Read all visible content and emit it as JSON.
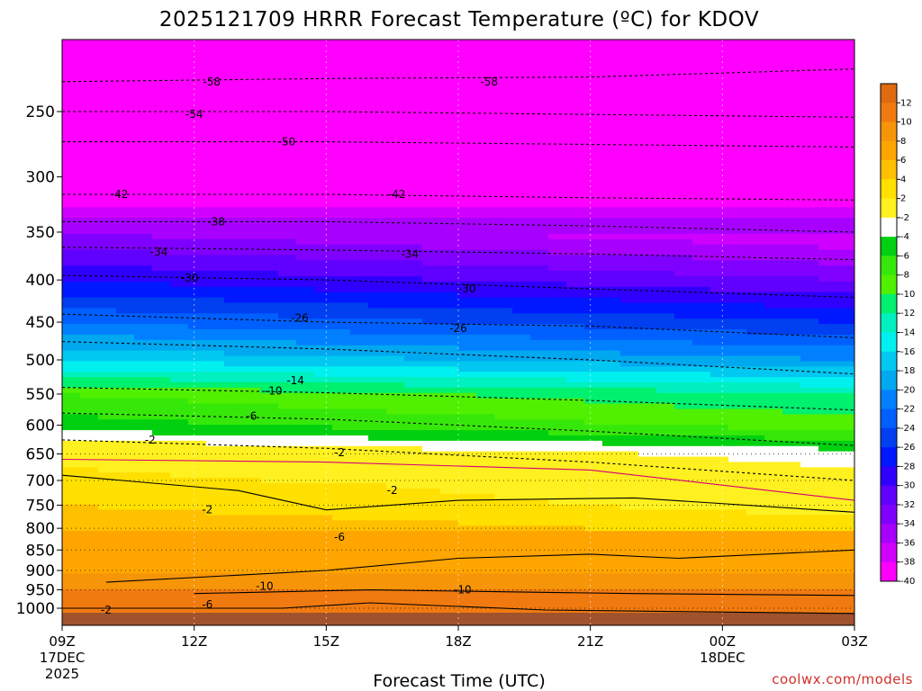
{
  "chart_data": {
    "type": "heatmap",
    "title": "2025121709 HRRR Forecast Temperature (ºC) for KDOV",
    "xlabel": "Forecast Time (UTC)",
    "ylabel": "",
    "x_ticks": [
      {
        "label": "09Z",
        "sub1": "17DEC",
        "sub2": "2025"
      },
      {
        "label": "12Z",
        "sub1": "",
        "sub2": ""
      },
      {
        "label": "15Z",
        "sub1": "",
        "sub2": ""
      },
      {
        "label": "18Z",
        "sub1": "",
        "sub2": ""
      },
      {
        "label": "21Z",
        "sub1": "",
        "sub2": ""
      },
      {
        "label": "00Z",
        "sub1": "18DEC",
        "sub2": ""
      },
      {
        "label": "03Z",
        "sub1": "",
        "sub2": ""
      }
    ],
    "xlim": [
      0,
      18
    ],
    "y_ticks": [
      1000,
      950,
      900,
      850,
      800,
      750,
      700,
      650,
      600,
      550,
      500,
      450,
      400,
      350,
      300,
      250
    ],
    "ylim_hpa": [
      1020,
      200
    ],
    "y_scale": "log-pressure",
    "colorbar_levels": [
      12,
      10,
      8,
      6,
      4,
      2,
      -2,
      -4,
      -6,
      -8,
      -10,
      -12,
      -14,
      -16,
      -18,
      -20,
      -22,
      -24,
      -26,
      -28,
      -30,
      -32,
      -34,
      -36,
      -38,
      -40
    ],
    "colorbar_colors": [
      "#e06a10",
      "#f07a10",
      "#f69508",
      "#ffa500",
      "#ffc000",
      "#ffe000",
      "#fff020",
      "#ffffff",
      "#00d010",
      "#36e80a",
      "#50f000",
      "#00f070",
      "#00f0c0",
      "#00f0f0",
      "#00c8f0",
      "#00a8f0",
      "#0080ff",
      "#0060ff",
      "#0040f0",
      "#0018ff",
      "#3000ff",
      "#6000ff",
      "#8000ff",
      "#a800ff",
      "#d000ff",
      "#ff00ff"
    ],
    "temperature_profile_start": [
      [
        1000,
        10
      ],
      [
        950,
        10
      ],
      [
        900,
        8
      ],
      [
        850,
        7
      ],
      [
        800,
        6
      ],
      [
        750,
        4
      ],
      [
        700,
        3
      ],
      [
        650,
        1
      ],
      [
        600,
        -5
      ],
      [
        550,
        -8
      ],
      [
        500,
        -16
      ],
      [
        450,
        -22
      ],
      [
        400,
        -28
      ],
      [
        350,
        -34
      ],
      [
        300,
        -43
      ],
      [
        250,
        -53
      ],
      [
        200,
        -60
      ]
    ],
    "contour_labels": [
      "-58",
      "-58",
      "-54",
      "-50",
      "-42",
      "-42",
      "-38",
      "-34",
      "-34",
      "-30",
      "-30",
      "-26",
      "-26",
      "-14",
      "-10",
      "-6",
      "-2",
      "-2",
      "-2",
      "-2",
      "-6",
      "-10",
      "-10",
      "-6",
      "-2"
    ],
    "credit": "coolwx.com/models"
  }
}
